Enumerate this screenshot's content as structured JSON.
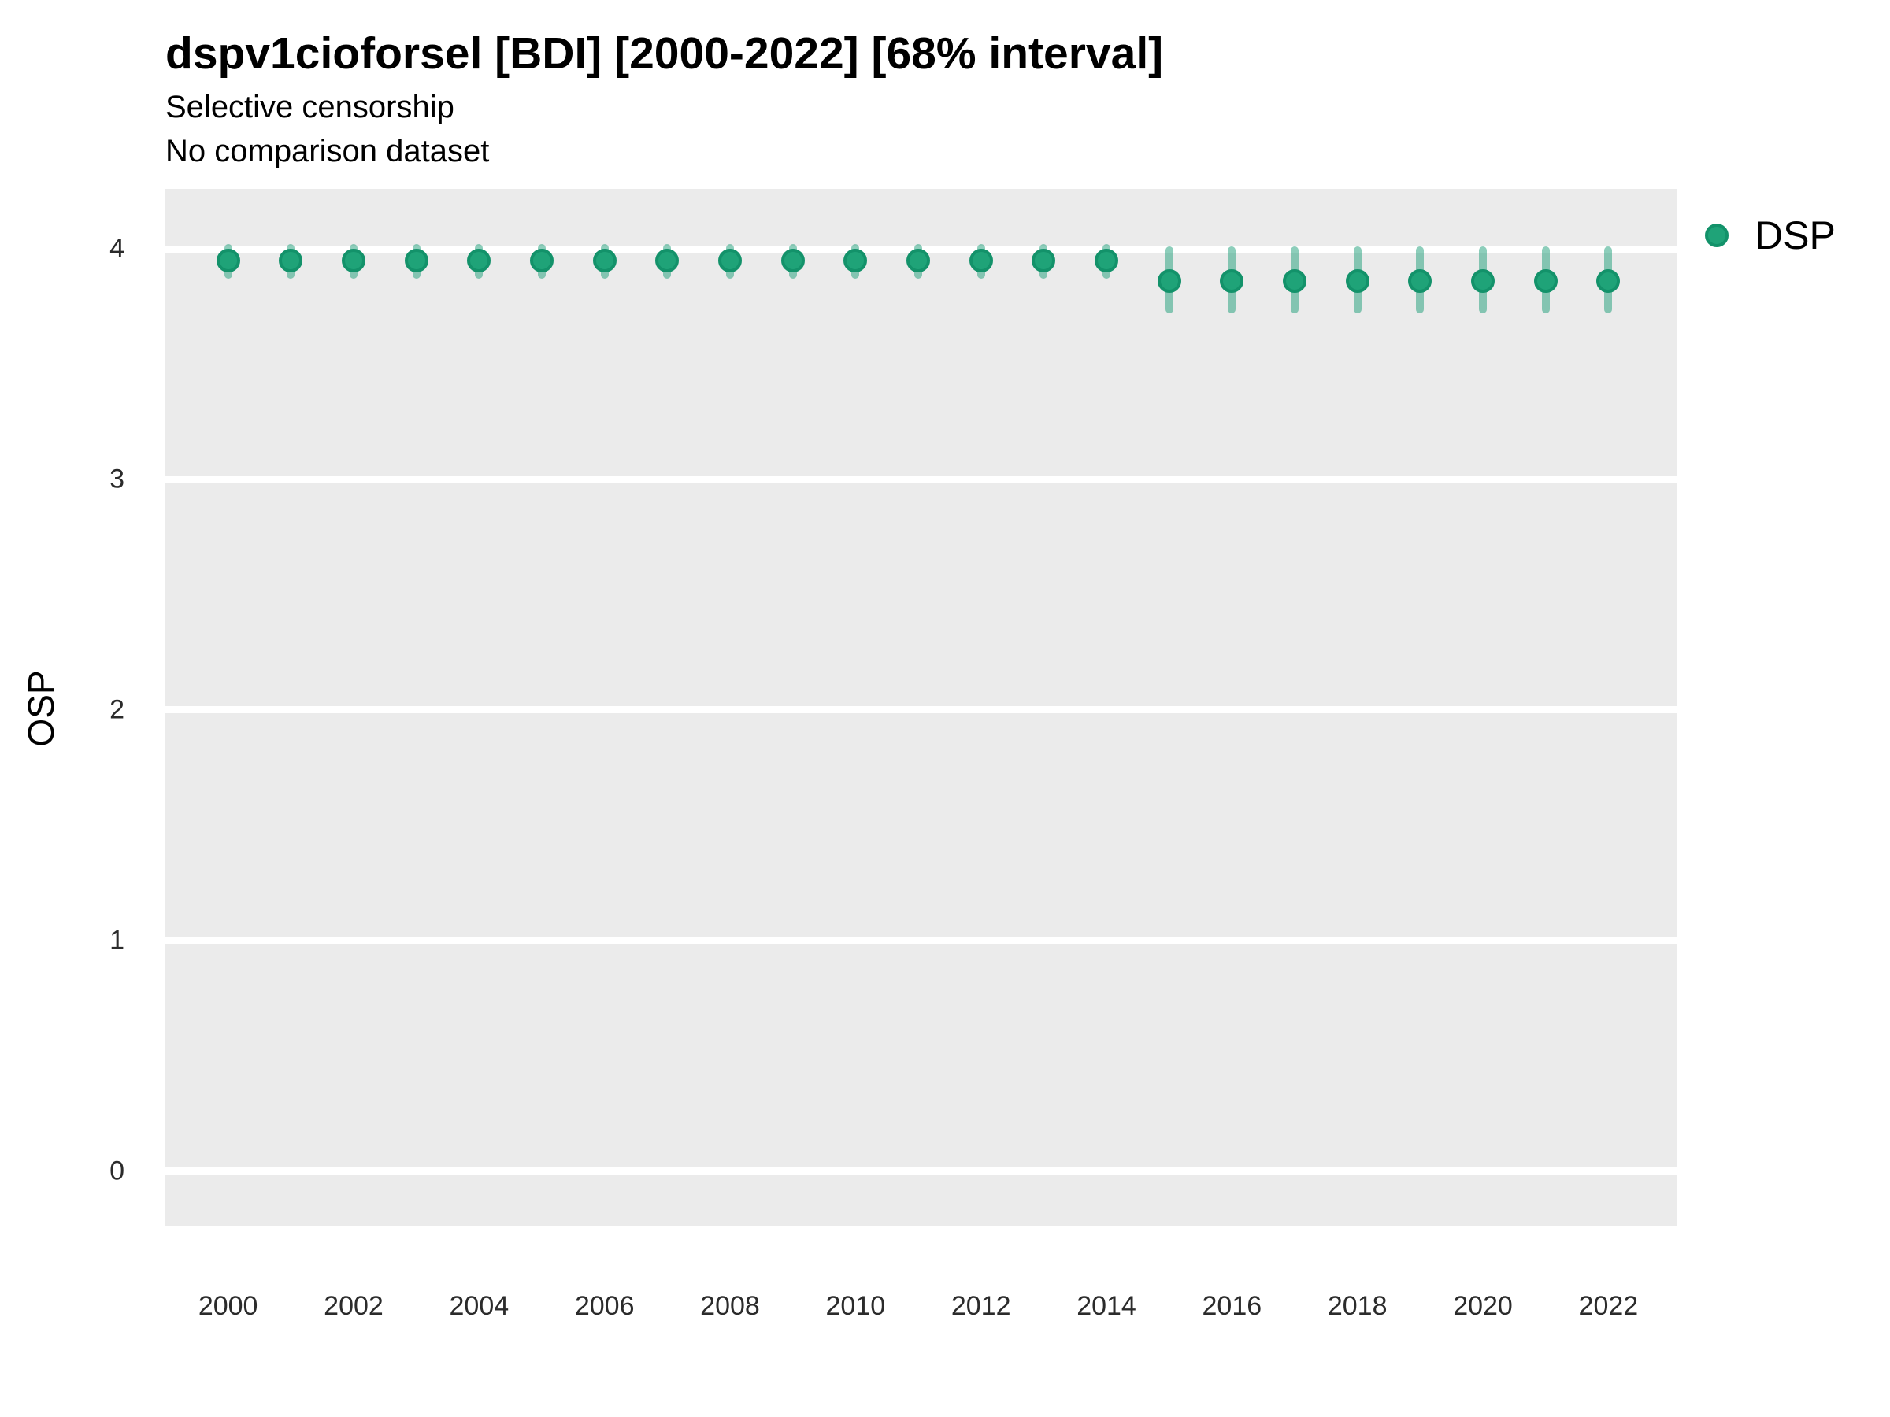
{
  "header": {
    "title": "dspv1cioforsel [BDI] [2000-2022] [68% interval]",
    "subtitle1": "Selective censorship",
    "subtitle2": "No comparison dataset"
  },
  "legend": {
    "position": "right",
    "items": [
      {
        "label": "DSP",
        "color": "#1B9E77"
      }
    ]
  },
  "axes": {
    "y_label": "OSP",
    "y_ticks": [
      0,
      1,
      2,
      3,
      4
    ],
    "x_ticks": [
      2000,
      2002,
      2004,
      2006,
      2008,
      2010,
      2012,
      2014,
      2016,
      2018,
      2020,
      2022
    ]
  },
  "style": {
    "plot_background": "#EBEBEB",
    "gridline_color": "#FFFFFF",
    "point_fill": "#1FA378",
    "point_ring": "#13926A",
    "errorbar_color": "rgba(27,158,119,0.5)",
    "text_color": "#000000"
  },
  "chart_data": {
    "type": "scatter",
    "title": "dspv1cioforsel [BDI] [2000-2022] [68% interval]",
    "subtitle": [
      "Selective censorship",
      "No comparison dataset"
    ],
    "xlabel": "",
    "ylabel": "OSP",
    "interval": "68%",
    "grid": "white-on-gray",
    "legend_position": "right",
    "x_domain": [
      1999.0,
      2023.1
    ],
    "y_domain": [
      -0.24,
      4.26
    ],
    "y_ticks": [
      0,
      1,
      2,
      3,
      4
    ],
    "x_ticks": [
      2000,
      2002,
      2004,
      2006,
      2008,
      2010,
      2012,
      2014,
      2016,
      2018,
      2020,
      2022
    ],
    "series": [
      {
        "name": "DSP",
        "color": "#1B9E77",
        "points": [
          {
            "year": 2000,
            "mid": 3.95,
            "lo": 3.87,
            "hi": 4.02
          },
          {
            "year": 2001,
            "mid": 3.95,
            "lo": 3.87,
            "hi": 4.02
          },
          {
            "year": 2002,
            "mid": 3.95,
            "lo": 3.87,
            "hi": 4.02
          },
          {
            "year": 2003,
            "mid": 3.95,
            "lo": 3.87,
            "hi": 4.02
          },
          {
            "year": 2004,
            "mid": 3.95,
            "lo": 3.87,
            "hi": 4.02
          },
          {
            "year": 2005,
            "mid": 3.95,
            "lo": 3.87,
            "hi": 4.02
          },
          {
            "year": 2006,
            "mid": 3.95,
            "lo": 3.87,
            "hi": 4.02
          },
          {
            "year": 2007,
            "mid": 3.95,
            "lo": 3.87,
            "hi": 4.02
          },
          {
            "year": 2008,
            "mid": 3.95,
            "lo": 3.87,
            "hi": 4.02
          },
          {
            "year": 2009,
            "mid": 3.95,
            "lo": 3.87,
            "hi": 4.02
          },
          {
            "year": 2010,
            "mid": 3.95,
            "lo": 3.87,
            "hi": 4.02
          },
          {
            "year": 2011,
            "mid": 3.95,
            "lo": 3.87,
            "hi": 4.02
          },
          {
            "year": 2012,
            "mid": 3.95,
            "lo": 3.87,
            "hi": 4.02
          },
          {
            "year": 2013,
            "mid": 3.95,
            "lo": 3.87,
            "hi": 4.02
          },
          {
            "year": 2014,
            "mid": 3.95,
            "lo": 3.87,
            "hi": 4.02
          },
          {
            "year": 2015,
            "mid": 3.86,
            "lo": 3.72,
            "hi": 4.01
          },
          {
            "year": 2016,
            "mid": 3.86,
            "lo": 3.72,
            "hi": 4.01
          },
          {
            "year": 2017,
            "mid": 3.86,
            "lo": 3.72,
            "hi": 4.01
          },
          {
            "year": 2018,
            "mid": 3.86,
            "lo": 3.72,
            "hi": 4.01
          },
          {
            "year": 2019,
            "mid": 3.86,
            "lo": 3.72,
            "hi": 4.01
          },
          {
            "year": 2020,
            "mid": 3.86,
            "lo": 3.72,
            "hi": 4.01
          },
          {
            "year": 2021,
            "mid": 3.86,
            "lo": 3.72,
            "hi": 4.01
          },
          {
            "year": 2022,
            "mid": 3.86,
            "lo": 3.72,
            "hi": 4.01
          }
        ]
      }
    ]
  }
}
